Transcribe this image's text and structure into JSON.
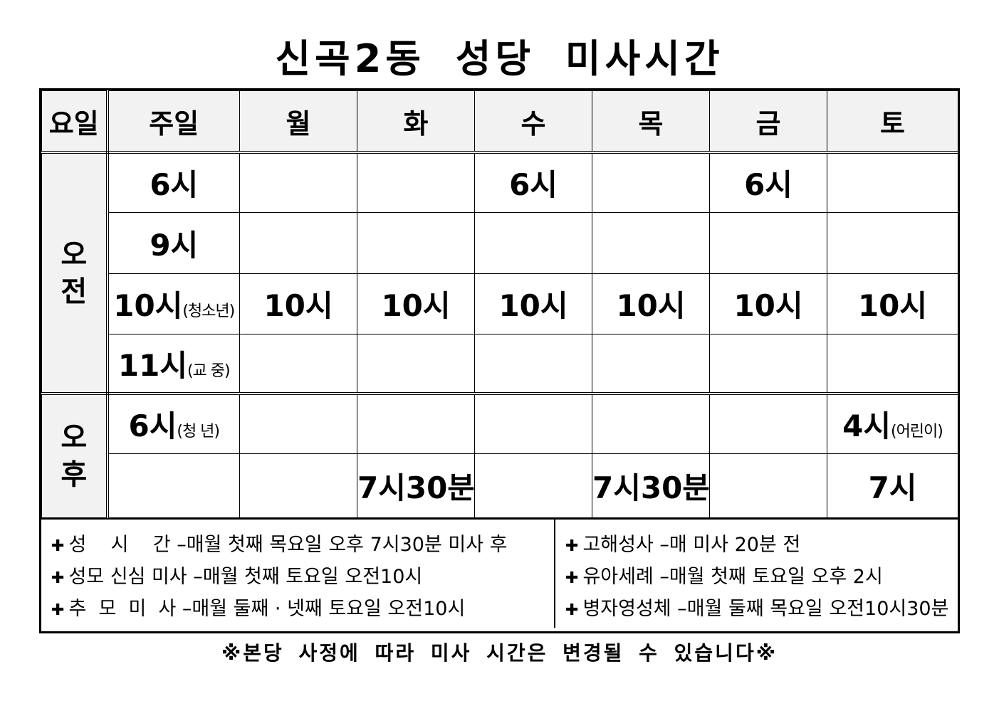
{
  "title": "신곡2동 성당 미사시간",
  "table": {
    "headers": [
      "요일",
      "주일",
      "월",
      "화",
      "수",
      "목",
      "금",
      "토"
    ],
    "periods": {
      "am": "오전",
      "pm": "오후"
    },
    "rows": [
      [
        {
          "main": "6시"
        },
        {},
        {},
        {
          "main": "6시"
        },
        {},
        {
          "main": "6시"
        },
        {}
      ],
      [
        {
          "main": "9시"
        },
        {},
        {},
        {},
        {},
        {},
        {}
      ],
      [
        {
          "main": "10시",
          "sub": "(청소년)"
        },
        {
          "main": "10시"
        },
        {
          "main": "10시"
        },
        {
          "main": "10시"
        },
        {
          "main": "10시"
        },
        {
          "main": "10시"
        },
        {
          "main": "10시"
        }
      ],
      [
        {
          "main": "11시",
          "sub": "(교  중)"
        },
        {},
        {},
        {},
        {},
        {},
        {}
      ],
      [
        {
          "main": "6시",
          "sub": "(청  년)"
        },
        {},
        {},
        {},
        {},
        {},
        {
          "main": "4시",
          "sub": "(어린이)"
        }
      ],
      [
        {},
        {},
        {
          "main": "7시30분"
        },
        {},
        {
          "main": "7시30분"
        },
        {},
        {
          "main": "7시"
        }
      ]
    ]
  },
  "notes": {
    "left": [
      "성    시    간 –매월 첫째 목요일 오후 7시30분 미사 후",
      "성모 신심 미사 –매월 첫째 토요일 오전10시",
      "추  모  미  사 –매월 둘째 · 넷째 토요일 오전10시"
    ],
    "right": [
      "고해성사 –매 미사 20분 전",
      "유아세례 –매월 첫째 토요일 오후 2시",
      "병자영성체 –매월 둘째 목요일 오전10시30분"
    ],
    "bullet": "✚"
  },
  "footer": "※본당 사정에 따라 미사 시간은 변경될 수 있습니다※"
}
